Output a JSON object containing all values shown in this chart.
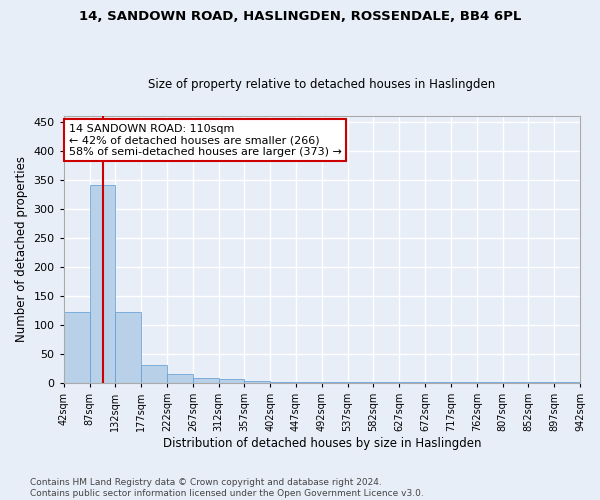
{
  "title": "14, SANDOWN ROAD, HASLINGDEN, ROSSENDALE, BB4 6PL",
  "subtitle": "Size of property relative to detached houses in Haslingden",
  "xlabel": "Distribution of detached houses by size in Haslingden",
  "ylabel": "Number of detached properties",
  "bar_values": [
    122,
    340,
    122,
    30,
    15,
    9,
    6,
    3,
    1,
    1,
    1,
    1,
    1,
    1,
    1,
    1,
    1,
    1,
    1,
    1
  ],
  "bin_edges": [
    42,
    87,
    132,
    177,
    222,
    267,
    312,
    357,
    402,
    447,
    492,
    537,
    582,
    627,
    672,
    717,
    762,
    807,
    852,
    897,
    942
  ],
  "bar_color": "#b8d0e8",
  "bar_edgecolor": "#5b9bd5",
  "vline_x": 110,
  "vline_color": "#cc0000",
  "annotation_text": "14 SANDOWN ROAD: 110sqm\n← 42% of detached houses are smaller (266)\n58% of semi-detached houses are larger (373) →",
  "annotation_box_color": "#ffffff",
  "annotation_box_edgecolor": "#cc0000",
  "ylim": [
    0,
    460
  ],
  "yticks": [
    0,
    50,
    100,
    150,
    200,
    250,
    300,
    350,
    400,
    450
  ],
  "footnote": "Contains HM Land Registry data © Crown copyright and database right 2024.\nContains public sector information licensed under the Open Government Licence v3.0.",
  "bg_color": "#e8eef8",
  "grid_color": "#ffffff",
  "title_fontsize": 9.5,
  "subtitle_fontsize": 8.5
}
